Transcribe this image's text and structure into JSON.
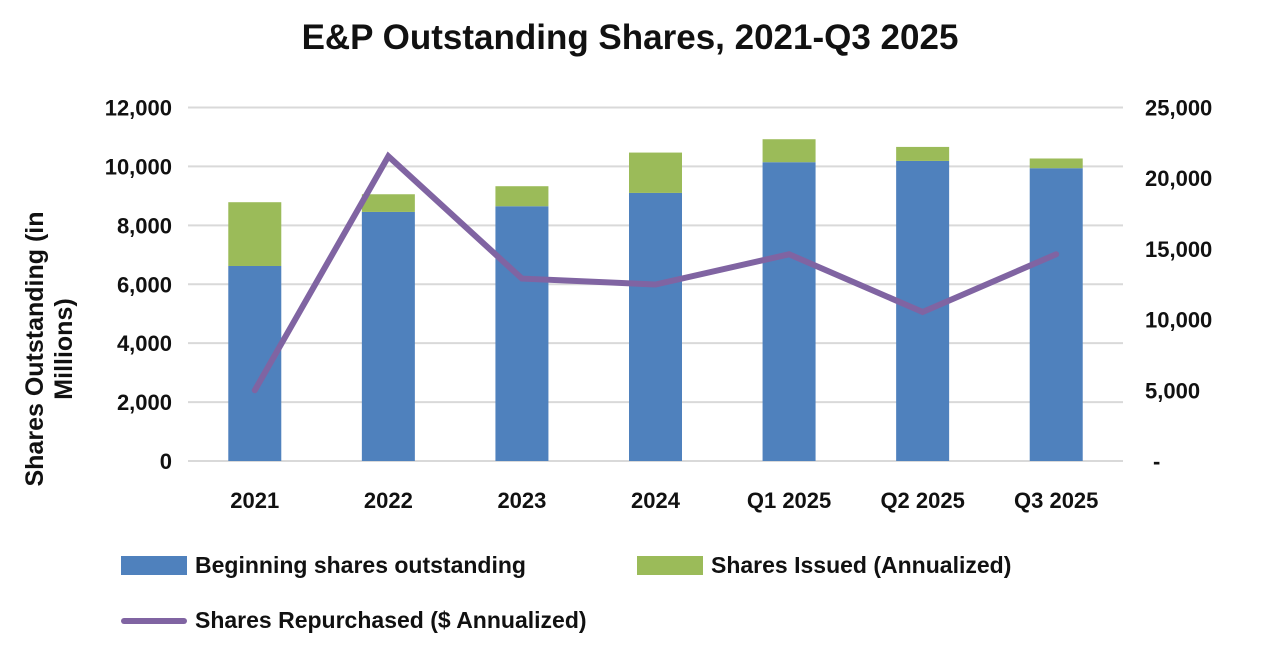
{
  "chart_data": {
    "type": "bar",
    "title": "E&P Outstanding Shares, 2021-Q3 2025",
    "ylabel": "Shares Outstanding (in Millions)",
    "xlabel": "",
    "categories": [
      "2021",
      "2022",
      "2023",
      "2024",
      "Q1 2025",
      "Q2 2025",
      "Q3 2025"
    ],
    "ylim": [
      0,
      12000
    ],
    "y_ticks": [
      "0",
      "2,000",
      "4,000",
      "6,000",
      "8,000",
      "10,000",
      "12,000"
    ],
    "y2lim": [
      0,
      25000
    ],
    "y2_ticks": [
      "-",
      "5,000",
      "10,000",
      "15,000",
      "20,000",
      "25,000"
    ],
    "grid": true,
    "legend_position": "bottom",
    "series": [
      {
        "name": "Beginning shares outstanding",
        "type": "bar",
        "stacked": true,
        "axis": "left",
        "color": "#4F81BD",
        "values": [
          6620,
          8455,
          8648,
          9100,
          10143,
          10187,
          9939
        ]
      },
      {
        "name": "Shares Issued (Annualized)",
        "type": "bar",
        "stacked": true,
        "axis": "left",
        "color": "#9BBB59",
        "values": [
          2165,
          600,
          680,
          1370,
          780,
          475,
          330
        ]
      },
      {
        "name": "Shares Repurchased ($ Annualized)",
        "type": "line",
        "axis": "right",
        "color": "#8064A2",
        "values": [
          5000,
          21550,
          12900,
          12480,
          14620,
          10540,
          14620
        ]
      }
    ]
  }
}
